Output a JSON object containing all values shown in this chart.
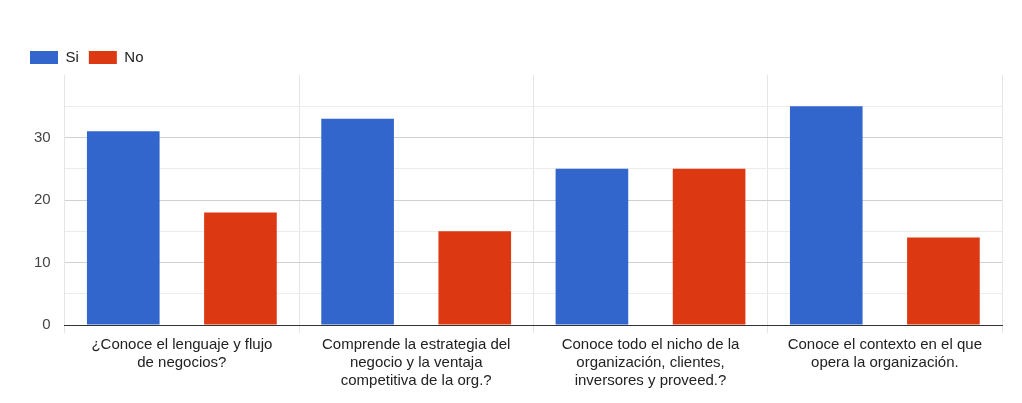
{
  "chart_data": {
    "type": "bar",
    "categories": [
      "¿Conoce el lenguaje y flujo de negocios?",
      "Comprende la estrategia del negocio y la ventaja competitiva de la org.?",
      "Conoce todo el nicho de la organización, clientes, inversores y proveed.?",
      "Conoce el contexto en el que opera la organización."
    ],
    "series": [
      {
        "name": "Si",
        "color": "#3366cc",
        "values": [
          31,
          33,
          25,
          35
        ]
      },
      {
        "name": "No",
        "color": "#dc3912",
        "values": [
          18,
          15,
          25,
          14
        ]
      }
    ],
    "ylim": [
      0,
      40
    ],
    "yticks": [
      0,
      {
        "value": 5,
        "label": null
      },
      10,
      {
        "value": 15,
        "label": null
      },
      20,
      {
        "value": 25,
        "label": null
      },
      30,
      {
        "value": 35,
        "label": null
      }
    ],
    "grid": true,
    "legend": "top left"
  }
}
